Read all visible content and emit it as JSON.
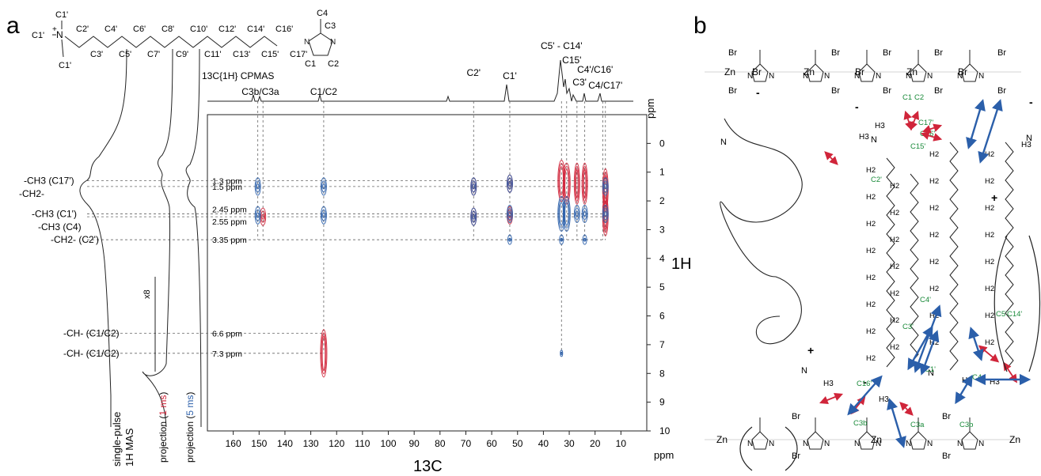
{
  "panel_a": {
    "label": "a",
    "formula": {
      "c1p": "C1'",
      "plus": "+",
      "chain_top": [
        "C2'",
        "C4'",
        "C6'",
        "C8'",
        "C10'",
        "C12'",
        "C14'",
        "C16'"
      ],
      "chain_bottom": [
        "C3'",
        "C5'",
        "C7'",
        "C9'",
        "C11'",
        "C13'",
        "C15'",
        "C17'"
      ],
      "im_c4": "C4",
      "im_c3": "C3",
      "im_n": "N",
      "im_c1": "C1",
      "im_c2": "C2"
    },
    "cpmas_label": "13C{1H} CPMAS",
    "peak_labels": [
      "C3b/C3a",
      "C1/C2",
      "C2'",
      "C1'",
      "C5' - C14'",
      "C15'",
      "C3'",
      "C4'/C16'",
      "C4/C17'"
    ],
    "assignments": [
      "-CH3 (C17')",
      "-CH2-",
      "-CH3 (C1')",
      "-CH3 (C4)",
      "-CH2- (C2')",
      "-CH- (C1/C2)",
      "-CH- (C1/C2)"
    ],
    "ppm_labels": [
      "1.3 ppm",
      "1.5 ppm",
      "2.45 ppm",
      "2.55 ppm",
      "3.35 ppm",
      "6.6 ppm",
      "7.3 ppm"
    ],
    "projection_labels": {
      "single_pulse": "single-pulse",
      "h_mas": "1H MAS",
      "x8": "x8",
      "proj_1ms_pre": "projection (",
      "proj_1ms_val": "1 ms",
      "proj_5ms_pre": "projection (",
      "proj_5ms_val": "5 ms",
      "close": ")"
    },
    "colors": {
      "red": "#d0253a",
      "blue": "#2b5faa",
      "green": "#1a8a3a"
    }
  },
  "panel_b": {
    "label": "b",
    "atoms": {
      "zn": "Zn",
      "br": "Br",
      "n": "N",
      "h3": "H3",
      "h2": "H2"
    },
    "green_labels": [
      "C1",
      "C2",
      "C17'",
      "C16'",
      "C15'",
      "C2'",
      "C5'",
      "C14'",
      "C4'",
      "C3'",
      "C1'",
      "C4",
      "C16'",
      "C3b",
      "C3a",
      "C3b"
    ],
    "charges": [
      "+",
      "-"
    ]
  },
  "chart_data": {
    "type": "heatmap",
    "title": "13C{1H} CPMAS",
    "xlabel": "13C",
    "ylabel": "1H",
    "x_unit": "ppm",
    "y_unit": "ppm",
    "xlim": [
      170,
      0
    ],
    "ylim": [
      -1,
      10
    ],
    "x_ticks": [
      160,
      150,
      140,
      130,
      120,
      110,
      100,
      90,
      80,
      70,
      60,
      50,
      40,
      30,
      20,
      10
    ],
    "y_ticks": [
      0,
      1,
      2,
      3,
      4,
      5,
      6,
      7,
      8,
      9,
      10
    ],
    "peak_positions_13C": [
      150.5,
      148.5,
      125,
      67,
      53,
      33,
      31,
      27,
      24,
      17,
      16
    ],
    "proton_rows_1H": [
      1.3,
      1.5,
      2.45,
      2.55,
      3.35,
      6.6,
      7.3
    ],
    "series": [
      {
        "name": "1 ms",
        "color": "#d0253a",
        "peaks": [
          {
            "x": 148.5,
            "y": 2.55
          },
          {
            "x": 125,
            "y": 7.3
          },
          {
            "x": 67,
            "y": 1.5
          },
          {
            "x": 67,
            "y": 2.55
          },
          {
            "x": 53,
            "y": 1.4
          },
          {
            "x": 53,
            "y": 2.5
          },
          {
            "x": 33,
            "y": 1.3
          },
          {
            "x": 31,
            "y": 1.4
          },
          {
            "x": 27,
            "y": 1.4
          },
          {
            "x": 24,
            "y": 1.4
          },
          {
            "x": 16,
            "y": 1.6
          },
          {
            "x": 16,
            "y": 2.5
          }
        ]
      },
      {
        "name": "5 ms",
        "color": "#2b5faa",
        "peaks": [
          {
            "x": 150.5,
            "y": 1.5
          },
          {
            "x": 150.5,
            "y": 2.5
          },
          {
            "x": 125,
            "y": 1.5
          },
          {
            "x": 125,
            "y": 2.5
          },
          {
            "x": 67,
            "y": 1.5
          },
          {
            "x": 67,
            "y": 2.55
          },
          {
            "x": 53,
            "y": 1.4
          },
          {
            "x": 53,
            "y": 2.45
          },
          {
            "x": 53,
            "y": 3.35
          },
          {
            "x": 33,
            "y": 2.45
          },
          {
            "x": 33,
            "y": 3.35
          },
          {
            "x": 33,
            "y": 7.3
          },
          {
            "x": 31,
            "y": 2.45
          },
          {
            "x": 27,
            "y": 2.45
          },
          {
            "x": 24,
            "y": 2.45
          },
          {
            "x": 24,
            "y": 3.35
          },
          {
            "x": 16,
            "y": 1.5
          },
          {
            "x": 16,
            "y": 2.45
          }
        ]
      }
    ],
    "grid": false,
    "legend": "none"
  }
}
